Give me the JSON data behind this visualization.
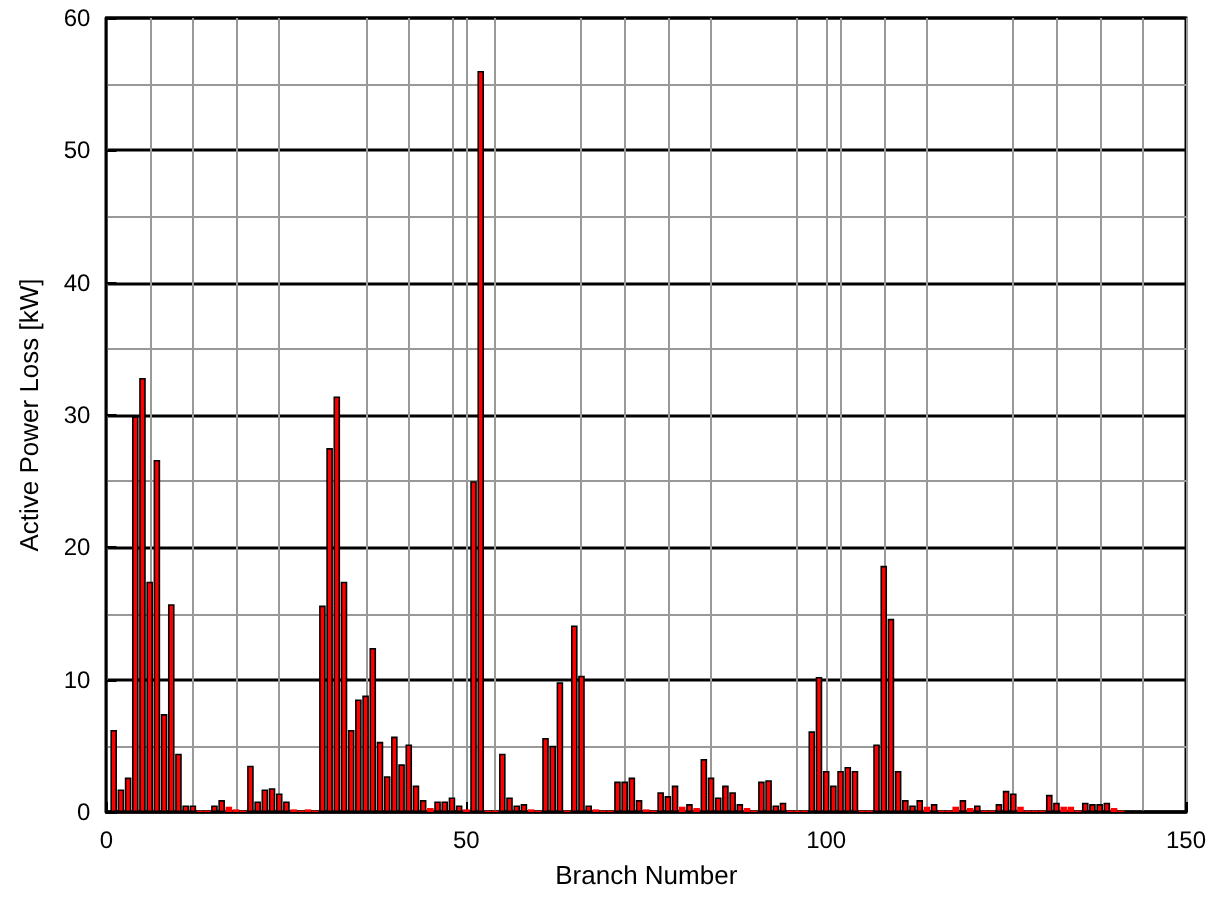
{
  "chart_data": {
    "type": "bar",
    "xlabel": "Branch Number",
    "ylabel": "Active Power Loss [kW]",
    "x": [
      1,
      2,
      3,
      4,
      5,
      6,
      7,
      8,
      9,
      10,
      11,
      12,
      13,
      14,
      15,
      16,
      17,
      18,
      19,
      20,
      21,
      22,
      23,
      24,
      25,
      26,
      27,
      28,
      29,
      30,
      31,
      32,
      33,
      34,
      35,
      36,
      37,
      38,
      39,
      40,
      41,
      42,
      43,
      44,
      45,
      46,
      47,
      48,
      49,
      50,
      51,
      52,
      53,
      54,
      55,
      56,
      57,
      58,
      59,
      60,
      61,
      62,
      63,
      64,
      65,
      66,
      67,
      68,
      69,
      70,
      71,
      72,
      73,
      74,
      75,
      76,
      77,
      78,
      79,
      80,
      81,
      82,
      83,
      84,
      85,
      86,
      87,
      88,
      89,
      90,
      91,
      92,
      93,
      94,
      95,
      96,
      97,
      98,
      99,
      100,
      101,
      102,
      103,
      104,
      105,
      106,
      107,
      108,
      109,
      110,
      111,
      112,
      113,
      114,
      115,
      116,
      117,
      118,
      119,
      120,
      121,
      122,
      123,
      124,
      125,
      126,
      127,
      128,
      129,
      130,
      131,
      132,
      133,
      134,
      135,
      136,
      137,
      138,
      139,
      140,
      141
    ],
    "values": [
      6.2,
      1.7,
      2.6,
      29.9,
      32.8,
      17.4,
      26.6,
      7.4,
      15.7,
      4.4,
      0.5,
      0.5,
      0.1,
      0.1,
      0.5,
      0.9,
      0.4,
      0.2,
      0.1,
      3.5,
      0.8,
      1.7,
      1.8,
      1.4,
      0.8,
      0.2,
      0.1,
      0.2,
      0.1,
      15.6,
      27.5,
      31.4,
      17.4,
      6.2,
      8.5,
      8.8,
      12.4,
      5.3,
      2.7,
      5.7,
      3.6,
      5.1,
      2.0,
      0.9,
      0.3,
      0.8,
      0.8,
      1.1,
      0.5,
      0.2,
      25,
      56,
      0.1,
      0.1,
      4.4,
      1.1,
      0.5,
      0.6,
      0.2,
      0.1,
      5.6,
      5.0,
      9.8,
      0.1,
      14.1,
      10.3,
      0.5,
      0.2,
      0.1,
      0.1,
      2.3,
      2.3,
      2.6,
      0.9,
      0.2,
      0.1,
      1.5,
      1.2,
      2.0,
      0.4,
      0.6,
      0.3,
      4.0,
      2.6,
      1.1,
      2.0,
      1.5,
      0.6,
      0.3,
      0.1,
      2.3,
      2.4,
      0.5,
      0.7,
      0.1,
      0.1,
      0.1,
      6.1,
      10.2,
      3.1,
      2.0,
      3.1,
      3.4,
      3.1,
      0.1,
      0.1,
      5.1,
      18.6,
      14.6,
      3.1,
      0.9,
      0.5,
      0.9,
      0.4,
      0.6,
      0.1,
      0.1,
      0.4,
      0.9,
      0.3,
      0.5,
      0.1,
      0.1,
      0.6,
      1.6,
      1.4,
      0.4,
      0.1,
      0.1,
      0.1,
      1.3,
      0.7,
      0.4,
      0.4,
      0.1,
      0.7,
      0.6,
      0.6,
      0.7,
      0.3,
      0.1
    ],
    "color": "#ff0000",
    "xlim": [
      0,
      150
    ],
    "xticks": [
      0,
      50,
      100,
      150
    ],
    "ylim": [
      0,
      60
    ],
    "yticks": [
      0,
      10,
      20,
      30,
      40,
      50,
      60
    ],
    "grid": true
  }
}
